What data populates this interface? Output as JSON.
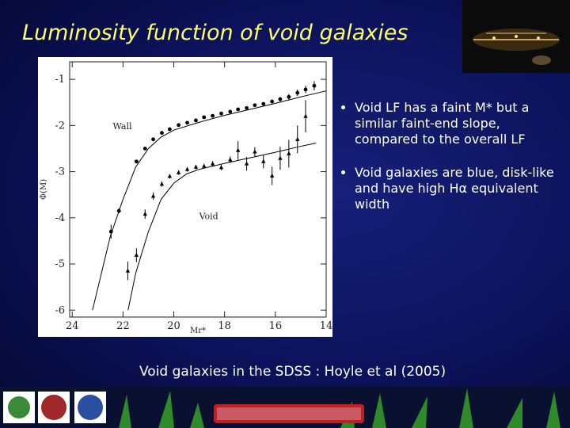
{
  "title": "Luminosity function of void galaxies",
  "bullets": [
    "Void LF has a faint M* but a similar faint-end slope, compared to the overall LF",
    "Void galaxies are blue, disk-like and have high Hα equivalent width"
  ],
  "caption": "Void galaxies in the SDSS : Hoyle et al (2005)",
  "chart_data": {
    "type": "scatter",
    "xlabel": "Mr*",
    "ylabel": "Φ(M)",
    "xlim": [
      24.1,
      14
    ],
    "ylim": [
      -6.15,
      -0.62
    ],
    "xticks": [
      24,
      22,
      20,
      18,
      16,
      14
    ],
    "yticks": [
      -1,
      -2,
      -3,
      -4,
      -5,
      -6
    ],
    "series": [
      {
        "name": "Wall",
        "marker": "circle",
        "color": "#000000",
        "x": [
          22.47,
          22.16,
          21.47,
          21.13,
          20.81,
          20.47,
          20.16,
          19.81,
          19.47,
          19.13,
          18.81,
          18.47,
          18.13,
          17.78,
          17.47,
          17.13,
          16.81,
          16.47,
          16.13,
          15.81,
          15.47,
          15.13,
          14.81,
          14.47
        ],
        "values": [
          -4.3,
          -3.85,
          -2.78,
          -2.5,
          -2.3,
          -2.16,
          -2.08,
          -1.99,
          -1.94,
          -1.89,
          -1.82,
          -1.79,
          -1.74,
          -1.7,
          -1.65,
          -1.62,
          -1.56,
          -1.53,
          -1.48,
          -1.43,
          -1.38,
          -1.29,
          -1.22,
          -1.14
        ],
        "errors": [
          0.15,
          0.05,
          0.04,
          0.03,
          0.03,
          0.03,
          0.03,
          0.03,
          0.03,
          0.03,
          0.03,
          0.03,
          0.03,
          0.03,
          0.03,
          0.03,
          0.03,
          0.03,
          0.04,
          0.05,
          0.06,
          0.07,
          0.08,
          0.1
        ]
      },
      {
        "name": "Void",
        "marker": "triangle",
        "color": "#000000",
        "x": [
          21.81,
          21.47,
          21.13,
          20.81,
          20.47,
          20.16,
          19.81,
          19.47,
          19.13,
          18.81,
          18.47,
          18.13,
          17.78,
          17.47,
          17.13,
          16.81,
          16.47,
          16.13,
          15.81,
          15.47,
          15.13,
          14.81
        ],
        "values": [
          -5.15,
          -4.81,
          -3.92,
          -3.53,
          -3.27,
          -3.1,
          -3.02,
          -2.95,
          -2.9,
          -2.88,
          -2.83,
          -2.91,
          -2.74,
          -2.54,
          -2.83,
          -2.57,
          -2.78,
          -3.09,
          -2.71,
          -2.61,
          -2.3,
          -1.8
        ],
        "errors": [
          0.2,
          0.15,
          0.1,
          0.08,
          0.06,
          0.05,
          0.05,
          0.05,
          0.05,
          0.05,
          0.06,
          0.06,
          0.07,
          0.2,
          0.15,
          0.1,
          0.15,
          0.2,
          0.25,
          0.3,
          0.3,
          0.35
        ]
      },
      {
        "marker": "line",
        "color": "#000000",
        "x": [
          23.2,
          22.5,
          22.0,
          21.5,
          21.0,
          20.5,
          20.0,
          19.0,
          18.0,
          17.0,
          16.0,
          15.0,
          14.0
        ],
        "values": [
          -6.0,
          -4.4,
          -3.6,
          -2.9,
          -2.5,
          -2.25,
          -2.1,
          -1.93,
          -1.78,
          -1.65,
          -1.52,
          -1.38,
          -1.25
        ]
      },
      {
        "marker": "line",
        "color": "#000000",
        "x": [
          21.8,
          21.5,
          21.0,
          20.5,
          20.0,
          19.5,
          19.0,
          18.0,
          17.0,
          16.0,
          15.0,
          14.4
        ],
        "values": [
          -6.0,
          -5.2,
          -4.3,
          -3.6,
          -3.25,
          -3.05,
          -2.95,
          -2.82,
          -2.7,
          -2.58,
          -2.45,
          -2.38
        ]
      }
    ],
    "annotations": [
      {
        "series": 0,
        "x": 22.4,
        "y": -2.08
      },
      {
        "series": 1,
        "x": 19.0,
        "y": -4.03
      }
    ]
  }
}
